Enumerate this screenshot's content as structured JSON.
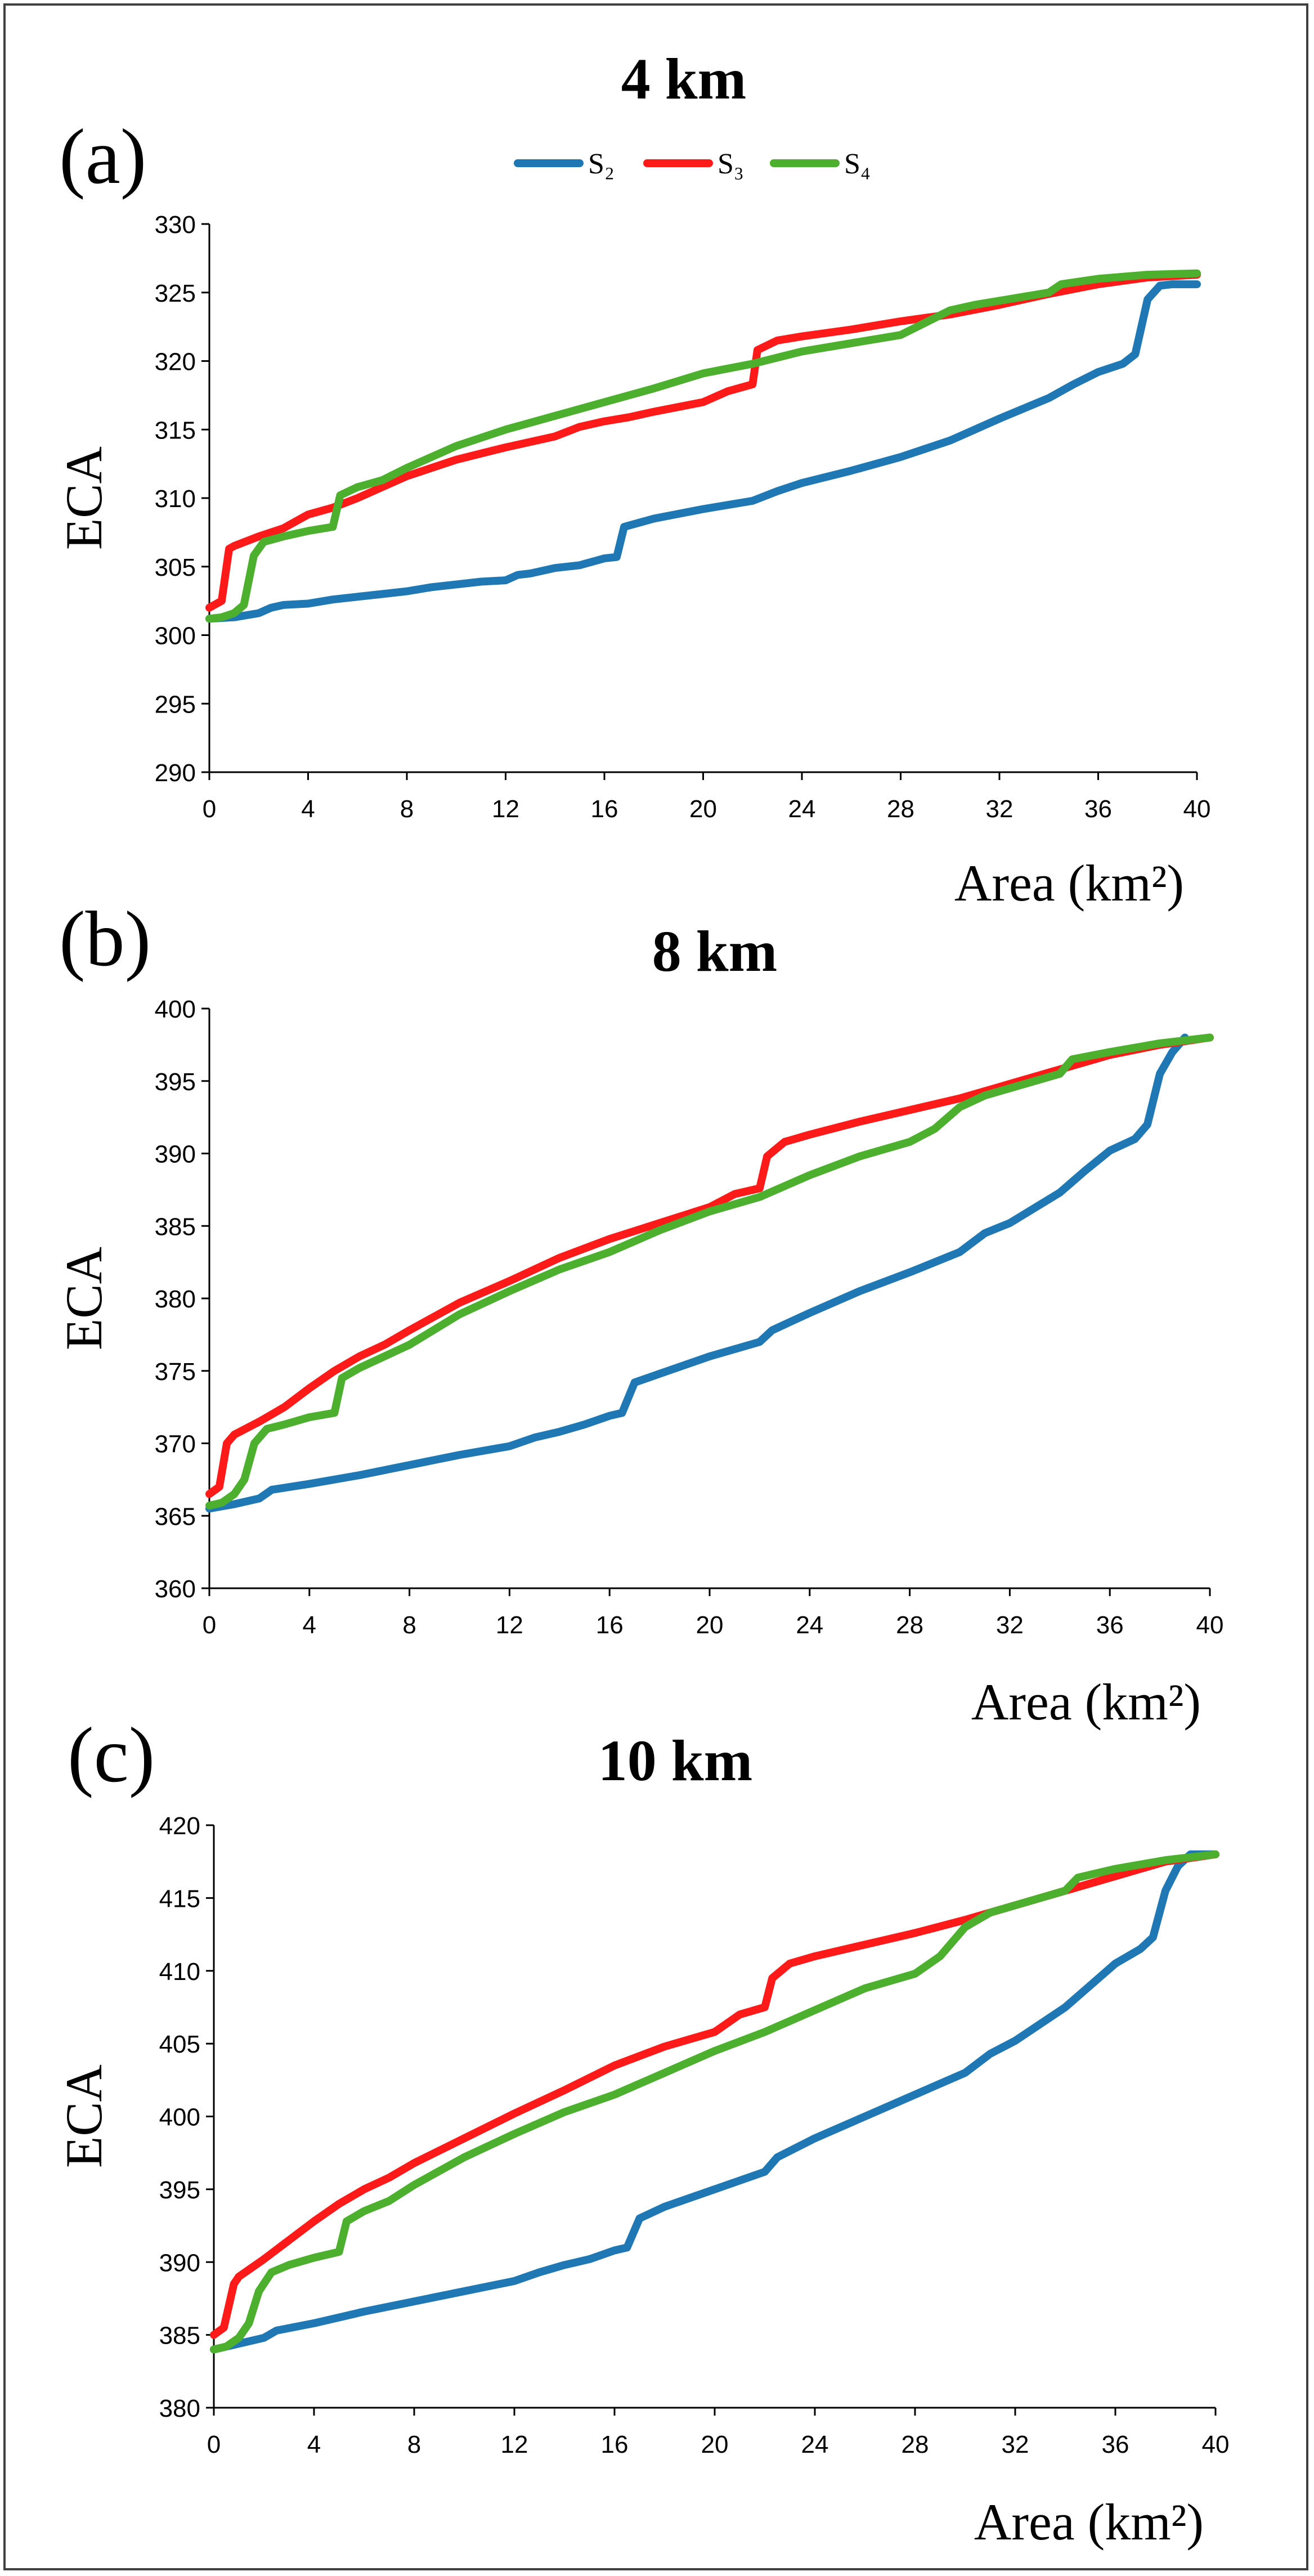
{
  "figure": {
    "description_free": true
  },
  "colors": {
    "S2": "#1f77b4",
    "S3": "#ff1a1a",
    "S4": "#4caf2e",
    "axis": "#000000"
  },
  "legend": [
    {
      "key": "S2",
      "label": "S₂"
    },
    {
      "key": "S3",
      "label": "S₃"
    },
    {
      "key": "S4",
      "label": "S₄"
    }
  ],
  "chart_data": [
    {
      "type": "line",
      "panel": "(a)",
      "title": "4 km",
      "xlabel": "Area (km²)",
      "ylabel": "ECA",
      "xlim": [
        0,
        40
      ],
      "ylim": [
        290,
        330
      ],
      "xticks": [
        0,
        4,
        8,
        12,
        16,
        20,
        24,
        28,
        32,
        36,
        40
      ],
      "yticks": [
        290,
        295,
        300,
        305,
        310,
        315,
        320,
        325,
        330
      ],
      "series": [
        {
          "name": "S2",
          "x": [
            0,
            1,
            2,
            2.5,
            3,
            4,
            5,
            6,
            7,
            8,
            9,
            10,
            11,
            12,
            12.5,
            13,
            14,
            15,
            16,
            16.5,
            16.8,
            18,
            20,
            22,
            23,
            24,
            26,
            28,
            30,
            31,
            32,
            34,
            35,
            36,
            37,
            37.5,
            38,
            38.5,
            39,
            40
          ],
          "values": [
            301.2,
            301.3,
            301.6,
            302,
            302.2,
            302.3,
            302.6,
            302.8,
            303,
            303.2,
            303.5,
            303.7,
            303.9,
            304,
            304.4,
            304.5,
            304.9,
            305.1,
            305.6,
            305.7,
            307.9,
            308.5,
            309.2,
            309.8,
            310.5,
            311.1,
            312,
            313,
            314.2,
            315,
            315.8,
            317.3,
            318.3,
            319.2,
            319.8,
            320.5,
            324.5,
            325.5,
            325.6,
            325.6
          ]
        },
        {
          "name": "S3",
          "x": [
            0,
            0.5,
            0.8,
            1,
            2,
            3,
            4,
            5,
            6,
            7,
            8,
            10,
            12,
            14,
            15,
            16,
            17,
            18,
            20,
            21,
            22,
            22.2,
            23,
            24,
            26,
            28,
            30,
            32,
            34,
            36,
            38,
            40
          ],
          "values": [
            302,
            302.5,
            306.3,
            306.5,
            307.2,
            307.8,
            308.8,
            309.3,
            310,
            310.8,
            311.6,
            312.8,
            313.7,
            314.5,
            315.2,
            315.6,
            315.9,
            316.3,
            317,
            317.8,
            318.3,
            320.8,
            321.5,
            321.8,
            322.3,
            322.9,
            323.4,
            324.1,
            324.9,
            325.6,
            326.1,
            326.3
          ]
        },
        {
          "name": "S4",
          "x": [
            0,
            0.5,
            1,
            1.4,
            1.8,
            2.2,
            3,
            4,
            5,
            5.3,
            6,
            7,
            8,
            10,
            12,
            14,
            16,
            18,
            20,
            22,
            24,
            26,
            28,
            29,
            30,
            31,
            32,
            34,
            34.5,
            36,
            38,
            40
          ],
          "values": [
            301.2,
            301.3,
            301.6,
            302.2,
            305.8,
            306.8,
            307.2,
            307.6,
            307.9,
            310.2,
            310.8,
            311.3,
            312.2,
            313.8,
            315,
            316,
            317,
            318,
            319.1,
            319.8,
            320.7,
            321.3,
            321.9,
            322.8,
            323.7,
            324.1,
            324.4,
            325,
            325.6,
            326,
            326.3,
            326.4
          ]
        }
      ]
    },
    {
      "type": "line",
      "panel": "(b)",
      "title": "8 km",
      "xlabel": "Area (km²)",
      "ylabel": "ECA",
      "xlim": [
        0,
        40
      ],
      "ylim": [
        360,
        400
      ],
      "xticks": [
        0,
        4,
        8,
        12,
        16,
        20,
        24,
        28,
        32,
        36,
        40
      ],
      "yticks": [
        360,
        365,
        370,
        375,
        380,
        385,
        390,
        395,
        400
      ],
      "series": [
        {
          "name": "S2",
          "x": [
            0,
            1,
            2,
            2.5,
            4,
            6,
            8,
            10,
            12,
            13,
            14,
            15,
            16,
            16.5,
            17,
            18,
            20,
            22,
            22.5,
            24,
            26,
            28,
            30,
            31,
            32,
            34,
            35,
            36,
            37,
            37.5,
            38,
            38.5,
            39
          ],
          "values": [
            365.5,
            365.8,
            366.2,
            366.8,
            367.2,
            367.8,
            368.5,
            369.2,
            369.8,
            370.4,
            370.8,
            371.3,
            371.9,
            372.1,
            374.2,
            374.8,
            376,
            377,
            377.8,
            379,
            380.5,
            381.8,
            383.2,
            384.5,
            385.2,
            387.3,
            388.8,
            390.2,
            391,
            392,
            395.5,
            397,
            398
          ]
        },
        {
          "name": "S3",
          "x": [
            0,
            0.4,
            0.7,
            1,
            2,
            3,
            4,
            5,
            6,
            7,
            8,
            10,
            12,
            14,
            16,
            18,
            20,
            21,
            22,
            22.3,
            23,
            24,
            26,
            28,
            30,
            32,
            34,
            36,
            38,
            40
          ],
          "values": [
            366.5,
            367,
            370,
            370.6,
            371.5,
            372.5,
            373.8,
            375,
            376,
            376.8,
            377.8,
            379.7,
            381.2,
            382.8,
            384.1,
            385.2,
            386.3,
            387.2,
            387.6,
            389.8,
            390.8,
            391.3,
            392.2,
            393,
            393.8,
            394.8,
            395.8,
            396.8,
            397.5,
            398
          ]
        },
        {
          "name": "S4",
          "x": [
            0,
            0.5,
            1,
            1.4,
            1.8,
            2.3,
            3,
            4,
            5,
            5.3,
            6,
            7,
            8,
            10,
            12,
            14,
            16,
            18,
            20,
            22,
            24,
            26,
            28,
            29,
            30,
            31,
            32,
            34,
            34.5,
            36,
            38,
            40
          ],
          "values": [
            365.7,
            365.9,
            366.5,
            367.5,
            370,
            371,
            371.3,
            371.8,
            372.1,
            374.5,
            375.2,
            376,
            376.8,
            378.9,
            380.5,
            382,
            383.2,
            384.7,
            386,
            387,
            388.5,
            389.8,
            390.8,
            391.7,
            393.2,
            394,
            394.5,
            395.5,
            396.5,
            397,
            397.6,
            398
          ]
        }
      ]
    },
    {
      "type": "line",
      "panel": "(c)",
      "title": "10 km",
      "xlabel": "Area (km²)",
      "ylabel": "ECA",
      "xlim": [
        0,
        40
      ],
      "ylim": [
        380,
        420
      ],
      "xticks": [
        0,
        4,
        8,
        12,
        16,
        20,
        24,
        28,
        32,
        36,
        40
      ],
      "yticks": [
        380,
        385,
        390,
        395,
        400,
        405,
        410,
        415,
        420
      ],
      "series": [
        {
          "name": "S2",
          "x": [
            0,
            1,
            2,
            2.5,
            4,
            6,
            8,
            10,
            12,
            13,
            14,
            15,
            16,
            16.5,
            17,
            18,
            20,
            22,
            22.5,
            24,
            26,
            28,
            30,
            31,
            32,
            34,
            35,
            36,
            37,
            37.5,
            38,
            38.5,
            39,
            40
          ],
          "values": [
            384,
            384.4,
            384.8,
            385.3,
            385.8,
            386.6,
            387.3,
            388,
            388.7,
            389.3,
            389.8,
            390.2,
            390.8,
            391,
            393,
            393.8,
            395,
            396.2,
            397.2,
            398.5,
            400,
            401.5,
            403,
            404.3,
            405.2,
            407.5,
            409,
            410.5,
            411.5,
            412.3,
            415.5,
            417.2,
            418,
            418
          ]
        },
        {
          "name": "S3",
          "x": [
            0,
            0.4,
            0.8,
            1,
            2,
            3,
            4,
            5,
            6,
            7,
            8,
            10,
            12,
            14,
            16,
            18,
            20,
            21,
            22,
            22.3,
            23,
            24,
            26,
            28,
            30,
            32,
            34,
            36,
            38,
            40
          ],
          "values": [
            385,
            385.5,
            388.5,
            389,
            390.2,
            391.5,
            392.8,
            394,
            395,
            395.8,
            396.8,
            398.5,
            400.2,
            401.8,
            403.5,
            404.8,
            405.8,
            407,
            407.5,
            409.5,
            410.5,
            411,
            411.8,
            412.6,
            413.5,
            414.5,
            415.5,
            416.5,
            417.5,
            418
          ]
        },
        {
          "name": "S4",
          "x": [
            0,
            0.5,
            1,
            1.4,
            1.8,
            2.3,
            3,
            4,
            5,
            5.3,
            6,
            7,
            8,
            10,
            12,
            14,
            16,
            18,
            20,
            22,
            24,
            26,
            28,
            29,
            30,
            31,
            32,
            34,
            34.5,
            36,
            38,
            40
          ],
          "values": [
            384,
            384.2,
            384.8,
            385.8,
            388,
            389.3,
            389.8,
            390.3,
            390.7,
            392.8,
            393.5,
            394.2,
            395.3,
            397.2,
            398.8,
            400.3,
            401.5,
            403,
            404.5,
            405.8,
            407.3,
            408.8,
            409.8,
            411,
            413,
            414,
            414.5,
            415.5,
            416.4,
            417,
            417.6,
            418
          ]
        }
      ]
    }
  ]
}
